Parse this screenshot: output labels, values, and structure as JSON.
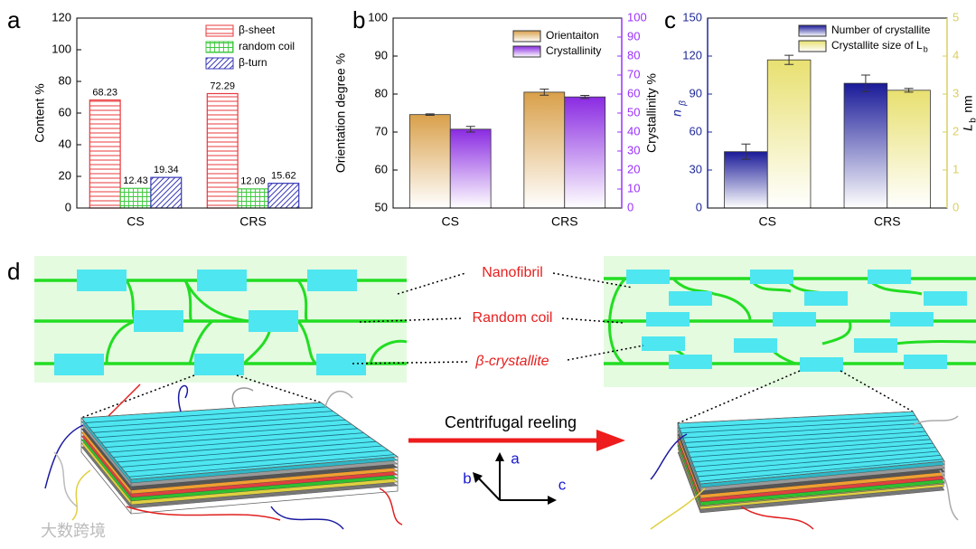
{
  "panels": [
    "a",
    "b",
    "c",
    "d"
  ],
  "chart_data": [
    {
      "type": "bar",
      "categories": [
        "CS",
        "CRS"
      ],
      "ylabel": "Content %",
      "ylim": [
        0,
        120
      ],
      "yticks": [
        0,
        20,
        40,
        60,
        80,
        100,
        120
      ],
      "legend": "upper right",
      "data_labels": true,
      "series": [
        {
          "name": "β-sheet",
          "color": "#e8383b",
          "hatch": "horizontal",
          "values": [
            68.23,
            72.29
          ]
        },
        {
          "name": "random coil",
          "color": "#3cc83c",
          "hatch": "grid",
          "values": [
            12.43,
            12.09
          ]
        },
        {
          "name": "β-turn",
          "color": "#3a3ab8",
          "hatch": "diagonal",
          "values": [
            19.34,
            15.62
          ]
        }
      ]
    },
    {
      "type": "bar",
      "categories": [
        "CS",
        "CRS"
      ],
      "ylabel": "Orientation degree %",
      "y2label": "Crystallinity %",
      "ylim": [
        50,
        100
      ],
      "yticks": [
        50,
        60,
        70,
        80,
        90,
        100
      ],
      "y2lim": [
        0,
        100
      ],
      "y2ticks": [
        0,
        10,
        20,
        30,
        40,
        50,
        60,
        70,
        80,
        90,
        100
      ],
      "y2color": "#9b30ff",
      "legend": "upper right",
      "fill_style": "gradient",
      "series": [
        {
          "name": "Orientaiton",
          "color": "#d9a04a",
          "values": [
            74.6,
            80.5
          ],
          "errors": [
            0.2,
            0.8
          ]
        },
        {
          "name": "Crystallinity",
          "color": "#8a2be2",
          "axis": "y2",
          "values": [
            41.5,
            58.5
          ],
          "errors": [
            1.5,
            0.8
          ]
        }
      ]
    },
    {
      "type": "bar",
      "categories": [
        "CS",
        "CRS"
      ],
      "ylabel": "n",
      "ylabel_subscript": "β",
      "y2label": "L",
      "y2label_subscript": "b",
      "y2label_unit": "nm",
      "ylim": [
        0,
        150
      ],
      "yticks": [
        0,
        30,
        60,
        90,
        120,
        150
      ],
      "ycolor": "#1f2a9a",
      "y2lim": [
        0,
        5
      ],
      "y2ticks": [
        0,
        1,
        2,
        3,
        4,
        5
      ],
      "y2color": "#d9cf60",
      "legend": "upper right",
      "fill_style": "gradient",
      "series": [
        {
          "name": "Number of crystallite",
          "color": "#1a1a99",
          "values": [
            44.5,
            98.5
          ],
          "errors": [
            6,
            6.5
          ]
        },
        {
          "name": "Crystallite size of L",
          "name_subscript": "b",
          "color": "#e8e070",
          "axis": "y2",
          "values": [
            3.9,
            3.1
          ],
          "errors": [
            0.12,
            0.05
          ]
        }
      ]
    }
  ],
  "diagram": {
    "labels": [
      "Nanofibril",
      "Random coil",
      "β-crystallite"
    ],
    "arrow_label": "Centrifugal reeling",
    "axes": [
      "a",
      "b",
      "c"
    ]
  },
  "watermark": "大数跨境"
}
